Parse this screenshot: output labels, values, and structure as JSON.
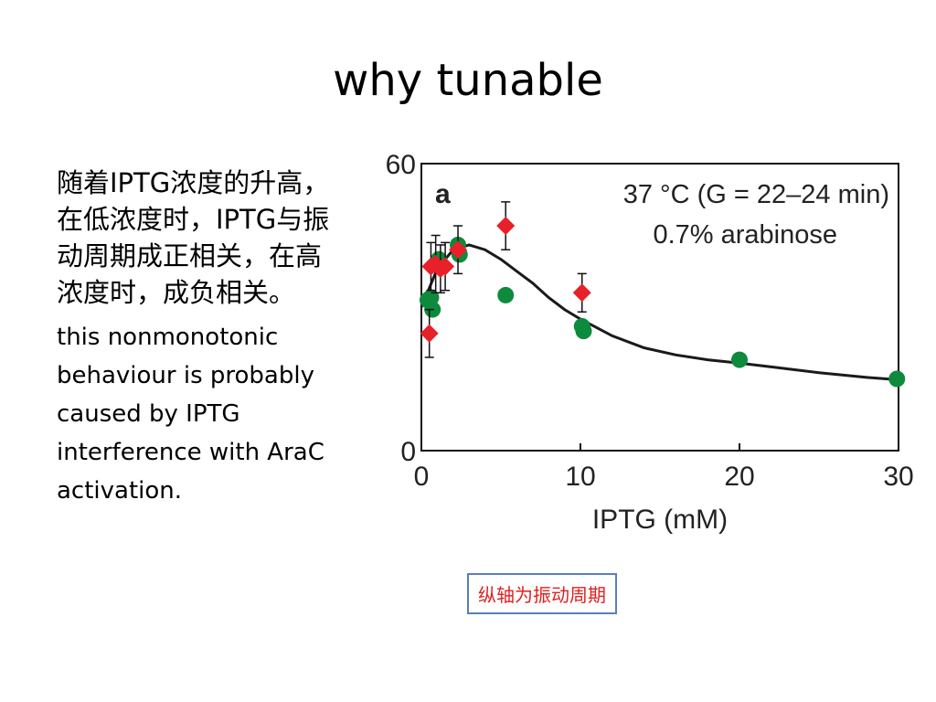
{
  "slide": {
    "title": "why tunable",
    "bullets": [
      "随着IPTG浓度的升高，在低浓度时，IPTG与振动周期成正相关，在高浓度时，成负相关。",
      "this nonmonotonic behaviour is probably caused by IPTG interference with AraC activation."
    ],
    "note": "纵轴为振动周期"
  },
  "chart_data": {
    "type": "scatter",
    "panel_label": "a",
    "annotation_line1": "37 °C (G = 22–24 min)",
    "annotation_line2": "0.7% arabinose",
    "xlabel": "IPTG (mM)",
    "ylabel": "",
    "xlim": [
      0,
      30
    ],
    "ylim": [
      0,
      60
    ],
    "x_ticks": [
      0,
      10,
      20,
      30
    ],
    "y_ticks": [
      0,
      60
    ],
    "grid": false,
    "colors": {
      "red": "#e8202a",
      "green": "#0e8a3c",
      "curve": "#1a1a1a"
    },
    "series": [
      {
        "color": "red",
        "points": [
          {
            "x": 0.5,
            "y": 24.5,
            "err": 5
          },
          {
            "x": 0.6,
            "y": 38.5,
            "err": 5
          },
          {
            "x": 0.9,
            "y": 39,
            "err": 6
          },
          {
            "x": 1.2,
            "y": 38,
            "err": 5
          },
          {
            "x": 1.5,
            "y": 38.5,
            "err": 5
          },
          {
            "x": 2.3,
            "y": 42,
            "err": 5
          },
          {
            "x": 5.3,
            "y": 47,
            "err": 5
          },
          {
            "x": 10.1,
            "y": 33,
            "err": 4
          }
        ]
      },
      {
        "color": "green",
        "points": [
          {
            "x": 0.4,
            "y": 31.5
          },
          {
            "x": 0.6,
            "y": 32
          },
          {
            "x": 0.7,
            "y": 29.5
          },
          {
            "x": 1.1,
            "y": 40
          },
          {
            "x": 2.3,
            "y": 43
          },
          {
            "x": 2.4,
            "y": 41
          },
          {
            "x": 5.3,
            "y": 32.5
          },
          {
            "x": 10.1,
            "y": 26
          },
          {
            "x": 10.2,
            "y": 25
          },
          {
            "x": 20,
            "y": 19
          },
          {
            "x": 29.9,
            "y": 15
          }
        ]
      }
    ],
    "fit_curve": [
      [
        0,
        30
      ],
      [
        1,
        38
      ],
      [
        2,
        42
      ],
      [
        3,
        43
      ],
      [
        4,
        42
      ],
      [
        5,
        40
      ],
      [
        6,
        37.5
      ],
      [
        7,
        35
      ],
      [
        8,
        32
      ],
      [
        9,
        29.5
      ],
      [
        10,
        27.5
      ],
      [
        12,
        24
      ],
      [
        14,
        21.5
      ],
      [
        16,
        20
      ],
      [
        18,
        19
      ],
      [
        20,
        18.3
      ],
      [
        22,
        17.5
      ],
      [
        25,
        16.3
      ],
      [
        28,
        15.3
      ],
      [
        30,
        14.8
      ]
    ]
  }
}
